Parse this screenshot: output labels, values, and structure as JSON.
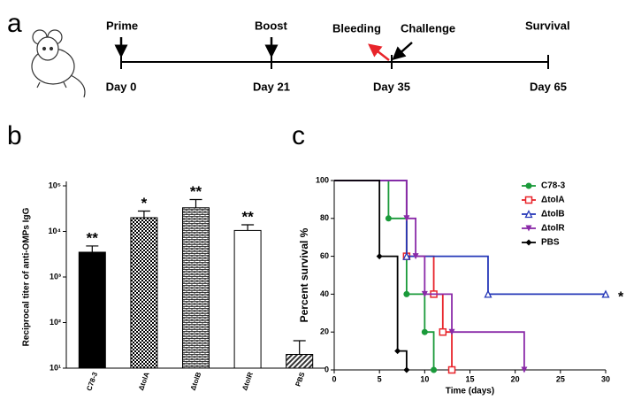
{
  "timeline": {
    "panel_label": "a",
    "top_labels": [
      "Prime",
      "Boost",
      "Bleeding",
      "Challenge",
      "Survival"
    ],
    "days": [
      "Day 0",
      "Day 21",
      "Day 35",
      "Day 65"
    ]
  },
  "chart_data": [
    {
      "type": "bar",
      "panel_label": "b",
      "ylabel": "Reciprocal titer of  anti-OMPs IgG",
      "categories": [
        "C78-3",
        "ΔtolA",
        "ΔtolB",
        "ΔtolR",
        "PBS"
      ],
      "values": [
        3500,
        20000,
        33000,
        10500,
        20
      ],
      "errors": [
        1300,
        8000,
        17000,
        3500,
        20
      ],
      "annotations": [
        "**",
        "*",
        "**",
        "**",
        null
      ],
      "fills": [
        "#000000",
        "checkered",
        "bricks",
        "#ffffff",
        "hatched"
      ],
      "log_scale": true,
      "ylim": [
        10,
        100000
      ],
      "yticks": [
        {
          "value": 10,
          "label": "10¹"
        },
        {
          "value": 100,
          "label": "10²"
        },
        {
          "value": 1000,
          "label": "10³"
        },
        {
          "value": 10000,
          "label": "10⁴"
        },
        {
          "value": 100000,
          "label": "10⁵"
        }
      ]
    },
    {
      "type": "survival",
      "panel_label": "c",
      "xlabel": "Time (days)",
      "ylabel": "Percent survival %",
      "xlim": [
        0,
        30
      ],
      "xticks": [
        0,
        5,
        10,
        15,
        20,
        25,
        30
      ],
      "ylim": [
        0,
        100
      ],
      "yticks": [
        0,
        20,
        40,
        60,
        80,
        100
      ],
      "annotation": "*",
      "series": [
        {
          "name": "C78-3",
          "color": "#1a9a3a",
          "marker": "circle",
          "x": [
            0,
            6,
            8,
            10,
            11
          ],
          "values": [
            100,
            80,
            40,
            20,
            0
          ]
        },
        {
          "name": "ΔtolA",
          "color": "#e8242a",
          "marker": "square",
          "x": [
            0,
            8,
            11,
            12,
            13
          ],
          "values": [
            100,
            60,
            40,
            20,
            0
          ]
        },
        {
          "name": "ΔtolB",
          "color": "#2638b8",
          "marker": "triangle",
          "x": [
            0,
            8,
            17,
            30
          ],
          "values": [
            100,
            60,
            40,
            40
          ]
        },
        {
          "name": "ΔtolR",
          "color": "#8a2aa8",
          "marker": "triangle-down",
          "x": [
            0,
            8,
            9,
            10,
            13,
            21
          ],
          "values": [
            100,
            80,
            60,
            40,
            20,
            0
          ]
        },
        {
          "name": "PBS",
          "color": "#000000",
          "marker": "diamond",
          "x": [
            0,
            5,
            7,
            8
          ],
          "values": [
            100,
            60,
            10,
            0
          ]
        }
      ]
    }
  ]
}
